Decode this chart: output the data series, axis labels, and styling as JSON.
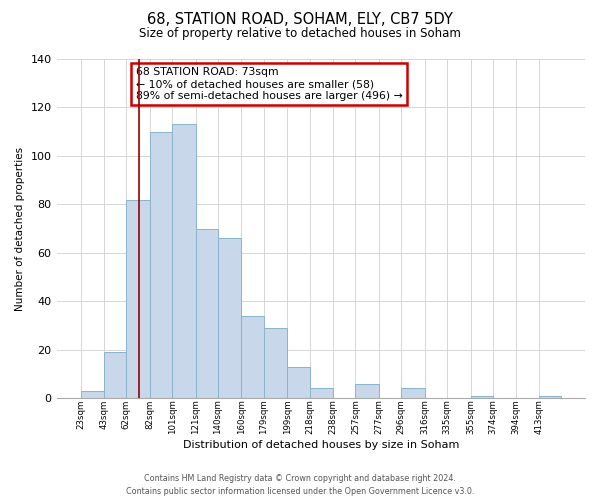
{
  "title": "68, STATION ROAD, SOHAM, ELY, CB7 5DY",
  "subtitle": "Size of property relative to detached houses in Soham",
  "xlabel": "Distribution of detached houses by size in Soham",
  "ylabel": "Number of detached properties",
  "bin_labels": [
    "23sqm",
    "43sqm",
    "62sqm",
    "82sqm",
    "101sqm",
    "121sqm",
    "140sqm",
    "160sqm",
    "179sqm",
    "199sqm",
    "218sqm",
    "238sqm",
    "257sqm",
    "277sqm",
    "296sqm",
    "316sqm",
    "335sqm",
    "355sqm",
    "374sqm",
    "394sqm",
    "413sqm"
  ],
  "label_values": [
    23,
    43,
    62,
    82,
    101,
    121,
    140,
    160,
    179,
    199,
    218,
    238,
    257,
    277,
    296,
    316,
    335,
    355,
    374,
    394,
    413
  ],
  "bar_heights": [
    3,
    19,
    82,
    110,
    113,
    70,
    66,
    34,
    29,
    13,
    4,
    0,
    6,
    0,
    4,
    0,
    0,
    1,
    0,
    0,
    1
  ],
  "bar_color": "#c8d8ea",
  "bar_edge_color": "#88b4cc",
  "ylim": [
    0,
    140
  ],
  "yticks": [
    0,
    20,
    40,
    60,
    80,
    100,
    120,
    140
  ],
  "property_line_x": 73,
  "property_line_color": "#990000",
  "annotation_text": "68 STATION ROAD: 73sqm\n← 10% of detached houses are smaller (58)\n89% of semi-detached houses are larger (496) →",
  "annotation_box_color": "#ffffff",
  "annotation_box_edge": "#cc0000",
  "footer_line1": "Contains HM Land Registry data © Crown copyright and database right 2024.",
  "footer_line2": "Contains public sector information licensed under the Open Government Licence v3.0.",
  "background_color": "#ffffff",
  "grid_color": "#d0d0d0"
}
